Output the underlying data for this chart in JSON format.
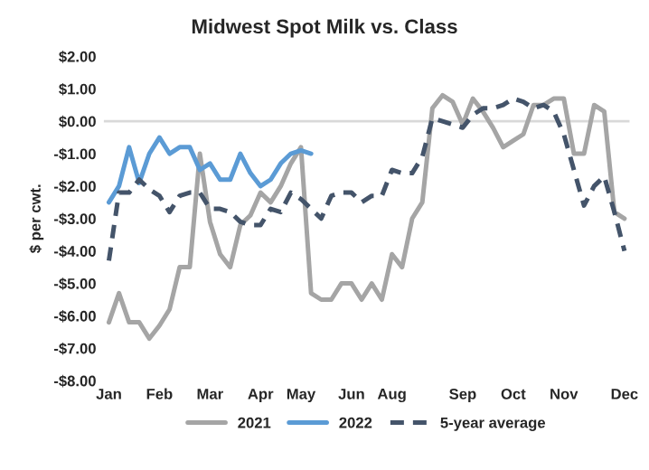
{
  "chart_data": {
    "type": "line",
    "title": "Midwest Spot Milk vs. Class",
    "ylabel": "$ per cwt.",
    "categories": [
      "Jan",
      null,
      null,
      null,
      null,
      "Feb",
      null,
      null,
      null,
      null,
      "Mar",
      null,
      null,
      null,
      null,
      "Apr",
      null,
      null,
      null,
      "May",
      null,
      null,
      null,
      null,
      "Jun",
      null,
      null,
      null,
      "Aug",
      null,
      null,
      null,
      null,
      null,
      null,
      "Sep",
      null,
      null,
      null,
      null,
      "Oct",
      null,
      null,
      null,
      null,
      "Nov",
      null,
      null,
      null,
      null,
      null,
      "Dec"
    ],
    "series": [
      {
        "name": "2021",
        "color": "#a5a5a5",
        "line_style": "solid",
        "values": [
          -6.2,
          -5.3,
          -6.2,
          -6.2,
          -6.7,
          -6.3,
          -5.8,
          -4.5,
          -4.5,
          -1.0,
          -3.1,
          -4.1,
          -4.5,
          -3.2,
          -2.9,
          -2.2,
          -2.5,
          -2.0,
          -1.3,
          -0.8,
          -5.3,
          -5.5,
          -5.5,
          -5.0,
          -5.0,
          -5.5,
          -5.0,
          -5.5,
          -4.1,
          -4.5,
          -3.0,
          -2.5,
          0.4,
          0.8,
          0.6,
          -0.1,
          0.7,
          0.3,
          -0.2,
          -0.8,
          -0.6,
          -0.4,
          0.5,
          0.5,
          0.7,
          0.7,
          -1.0,
          -1.0,
          0.5,
          0.3,
          -2.8,
          -3.0
        ]
      },
      {
        "name": "2022",
        "color": "#5b9bd5",
        "line_style": "solid",
        "values": [
          -2.5,
          -2.0,
          -0.8,
          -1.9,
          -1.0,
          -0.5,
          -1.0,
          -0.8,
          -0.8,
          -1.5,
          -1.3,
          -1.8,
          -1.8,
          -1.0,
          -1.6,
          -2.0,
          -1.8,
          -1.3,
          -1.0,
          -0.9,
          -1.0,
          null,
          null,
          null,
          null,
          null,
          null,
          null,
          null,
          null,
          null,
          null,
          null,
          null,
          null,
          null,
          null,
          null,
          null,
          null,
          null,
          null,
          null,
          null,
          null,
          null,
          null,
          null,
          null,
          null,
          null,
          null
        ]
      },
      {
        "name": "5-year average",
        "color": "#44546a",
        "line_style": "dashed",
        "values": [
          -4.3,
          -2.2,
          -2.2,
          -1.8,
          -2.1,
          -2.3,
          -2.8,
          -2.3,
          -2.2,
          -2.2,
          -2.7,
          -2.7,
          -2.8,
          -3.1,
          -3.2,
          -3.2,
          -2.7,
          -2.8,
          -2.2,
          -2.4,
          -2.7,
          -3.0,
          -2.3,
          -2.2,
          -2.2,
          -2.5,
          -2.3,
          -2.3,
          -1.5,
          -1.6,
          -1.6,
          -1.1,
          0.1,
          0.0,
          -0.1,
          -0.2,
          0.2,
          0.4,
          0.4,
          0.5,
          0.7,
          0.6,
          0.4,
          0.5,
          0.3,
          -0.4,
          -1.5,
          -2.6,
          -2.0,
          -1.7,
          -2.8,
          -4.0
        ]
      }
    ],
    "ylim": [
      -8,
      2
    ],
    "yticks": [
      {
        "value": 2,
        "label": "$2.00"
      },
      {
        "value": 1,
        "label": "$1.00"
      },
      {
        "value": 0,
        "label": "$0.00"
      },
      {
        "value": -1,
        "label": "-$1.00"
      },
      {
        "value": -2,
        "label": "-$2.00"
      },
      {
        "value": -3,
        "label": "-$3.00"
      },
      {
        "value": -4,
        "label": "-$4.00"
      },
      {
        "value": -5,
        "label": "-$5.00"
      },
      {
        "value": -6,
        "label": "-$6.00"
      },
      {
        "value": -7,
        "label": "-$7.00"
      },
      {
        "value": -8,
        "label": "-$8.00"
      }
    ],
    "ref_lines": [
      {
        "axis": "y",
        "value": 0,
        "color": "#d9d9d9"
      }
    ],
    "grid": false,
    "legend": "bottom"
  }
}
